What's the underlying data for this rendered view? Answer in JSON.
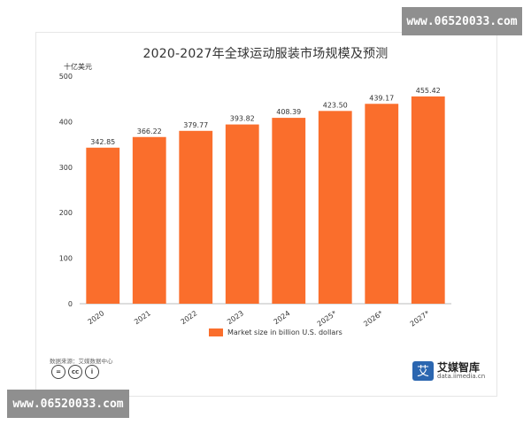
{
  "chart_data": {
    "type": "bar",
    "title": "2020-2027年全球运动服装市场规模及预测",
    "ylabel": "十亿美元",
    "categories": [
      "2020",
      "2021",
      "2022",
      "2023",
      "2024",
      "2025*",
      "2026*",
      "2027*"
    ],
    "series": [
      {
        "name": "Market size in billion U.S. dollars",
        "values": [
          342.85,
          366.22,
          379.77,
          393.82,
          408.39,
          423.5,
          439.17,
          455.42
        ],
        "value_labels": [
          "342.85",
          "366.22",
          "379.77",
          "393.82",
          "408.39",
          "423.50",
          "439.17",
          "455.42"
        ]
      }
    ],
    "ylim": [
      0,
      500
    ],
    "yticks": [
      "0",
      "100",
      "200",
      "300",
      "400",
      "500"
    ],
    "grid": false,
    "legend": "bottom",
    "bar_color": "#fa6e2c"
  },
  "footer": {
    "source": "数据来源：艾媒数据中心",
    "license_icons": [
      "equals-icon",
      "cc-icon",
      "person-icon"
    ],
    "brand_name": "艾媒智库",
    "brand_url": "data.iimedia.cn",
    "brand_logo_char": "艾"
  },
  "watermarks": {
    "top": "www.06520033.com",
    "bottom": "www.06520033.com"
  }
}
